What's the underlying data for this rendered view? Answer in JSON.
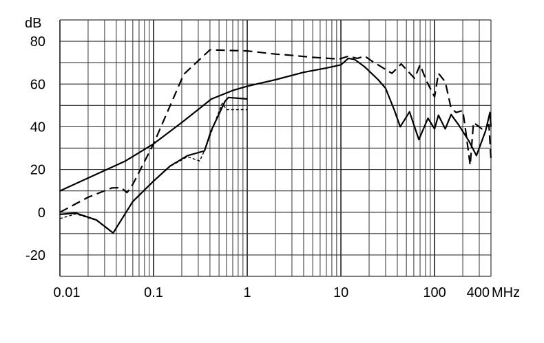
{
  "chart_data": {
    "type": "line",
    "title": "",
    "ylabel": "dB",
    "xlabel": "MHz",
    "x_scale": "log",
    "xlim": [
      0.01,
      400
    ],
    "ylim": [
      -30,
      90
    ],
    "grid": true,
    "x_tick_labels": [
      {
        "value": 0.01,
        "label": "0.01"
      },
      {
        "value": 0.1,
        "label": "0.1"
      },
      {
        "value": 1,
        "label": "1"
      },
      {
        "value": 10,
        "label": "10"
      },
      {
        "value": 100,
        "label": "100"
      },
      {
        "value": 400,
        "label": "400"
      }
    ],
    "y_tick_labels": [
      {
        "value": 80,
        "label": "80"
      },
      {
        "value": 60,
        "label": "60"
      },
      {
        "value": 40,
        "label": "40"
      },
      {
        "value": 20,
        "label": "20"
      },
      {
        "value": 0,
        "label": "0"
      },
      {
        "value": -20,
        "label": "-20"
      }
    ],
    "line_color": "#000000",
    "grid_color": "#333333",
    "series": [
      {
        "style": "solid",
        "points": [
          [
            0.01,
            10
          ],
          [
            0.02,
            16
          ],
          [
            0.05,
            24
          ],
          [
            0.1,
            32
          ],
          [
            0.2,
            42
          ],
          [
            0.415,
            53
          ],
          [
            0.7,
            57
          ],
          [
            1,
            59
          ],
          [
            2,
            62
          ],
          [
            4,
            65.5
          ],
          [
            7,
            67.5
          ],
          [
            10,
            69
          ],
          [
            12,
            72
          ],
          [
            14,
            71.5
          ],
          [
            18,
            68
          ],
          [
            25,
            62
          ],
          [
            30,
            58
          ],
          [
            37,
            48
          ],
          [
            43,
            40
          ],
          [
            54,
            47
          ],
          [
            68,
            34
          ],
          [
            85,
            44
          ],
          [
            100,
            39
          ],
          [
            110,
            45.4
          ],
          [
            130,
            39
          ],
          [
            150,
            45.7
          ],
          [
            180,
            41
          ],
          [
            235,
            33
          ],
          [
            280,
            26.5
          ],
          [
            350,
            38
          ],
          [
            390,
            46.7
          ],
          [
            400,
            40
          ]
        ]
      },
      {
        "style": "dashed",
        "points": [
          [
            0.01,
            0
          ],
          [
            0.02,
            7
          ],
          [
            0.036,
            11.4
          ],
          [
            0.045,
            11.5
          ],
          [
            0.052,
            9.2
          ],
          [
            0.06,
            13
          ],
          [
            0.1,
            32
          ],
          [
            0.21,
            64.6
          ],
          [
            0.4,
            76
          ],
          [
            1,
            75.5
          ],
          [
            2,
            74
          ],
          [
            2.7,
            73.6
          ],
          [
            5,
            72.5
          ],
          [
            9.6,
            71.7
          ],
          [
            12,
            73
          ],
          [
            15,
            72
          ],
          [
            18,
            73
          ],
          [
            21.5,
            70.7
          ],
          [
            35,
            65
          ],
          [
            44,
            69.4
          ],
          [
            61,
            62.7
          ],
          [
            70,
            69
          ],
          [
            82,
            61.4
          ],
          [
            100,
            54
          ],
          [
            110,
            65
          ],
          [
            130,
            61
          ],
          [
            150,
            48.6
          ],
          [
            170,
            46.7
          ],
          [
            200,
            47.6
          ],
          [
            215,
            38
          ],
          [
            240,
            22
          ],
          [
            260,
            42
          ],
          [
            320,
            39
          ],
          [
            380,
            41
          ],
          [
            400,
            25
          ]
        ]
      },
      {
        "style": "solid",
        "points": [
          [
            0.01,
            -1
          ],
          [
            0.0148,
            -0.4
          ],
          [
            0.0245,
            -3.6
          ],
          [
            0.037,
            -9.7
          ],
          [
            0.06,
            5
          ],
          [
            0.1,
            14.6
          ],
          [
            0.15,
            21.6
          ],
          [
            0.23,
            26.5
          ],
          [
            0.35,
            28.7
          ],
          [
            0.41,
            38
          ],
          [
            0.58,
            52
          ],
          [
            0.63,
            53.7
          ],
          [
            1,
            53
          ]
        ]
      },
      {
        "style": "dotted",
        "points": [
          [
            0.01,
            -3
          ],
          [
            0.0148,
            -0.8
          ],
          [
            0.0245,
            -3.8
          ],
          [
            0.037,
            -9.9
          ],
          [
            0.06,
            4.8
          ],
          [
            0.1,
            14.4
          ],
          [
            0.15,
            21.4
          ],
          [
            0.23,
            26
          ],
          [
            0.31,
            24
          ],
          [
            0.36,
            30
          ],
          [
            0.45,
            42
          ],
          [
            0.54,
            51
          ],
          [
            0.6,
            48
          ],
          [
            1,
            48
          ]
        ]
      }
    ]
  }
}
